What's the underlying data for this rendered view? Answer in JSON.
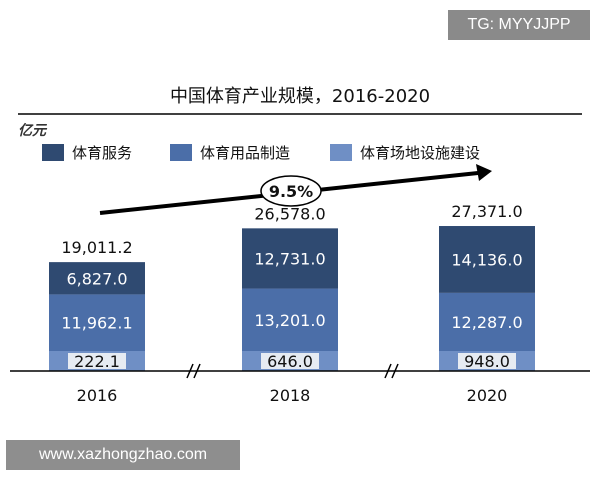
{
  "overlays": {
    "tag": "TG: MYYJJPP",
    "site": "www.xazhongzhao.com"
  },
  "chart_data": {
    "type": "bar",
    "stacked": true,
    "title": "中国体育产业规模，2016-2020",
    "unit_label": "亿元",
    "categories": [
      "2016",
      "2018",
      "2020"
    ],
    "series": [
      {
        "name": "体育服务",
        "values": [
          6827.0,
          12731.0,
          14136.0
        ],
        "value_labels": [
          "6,827.0",
          "12,731.0",
          "14,136.0"
        ]
      },
      {
        "name": "体育用品制造",
        "values": [
          11962.1,
          13201.0,
          12287.0
        ],
        "value_labels": [
          "11,962.1",
          "13,201.0",
          "12,287.0"
        ]
      },
      {
        "name": "体育场地设施建设",
        "values": [
          222.1,
          646.0,
          948.0
        ],
        "value_labels": [
          "222.1",
          "646.0",
          "948.0"
        ]
      }
    ],
    "totals": [
      19011.2,
      26578.0,
      27371.0
    ],
    "total_labels": [
      "19,011.2",
      "26,578.0",
      "27,371.0"
    ],
    "growth_annotation": "9.5%",
    "legend_position": "top",
    "colors": {
      "series": [
        "#2f4a71",
        "#4b6ea8",
        "#6f8fc5"
      ],
      "text": "#111111"
    },
    "grid": false
  }
}
